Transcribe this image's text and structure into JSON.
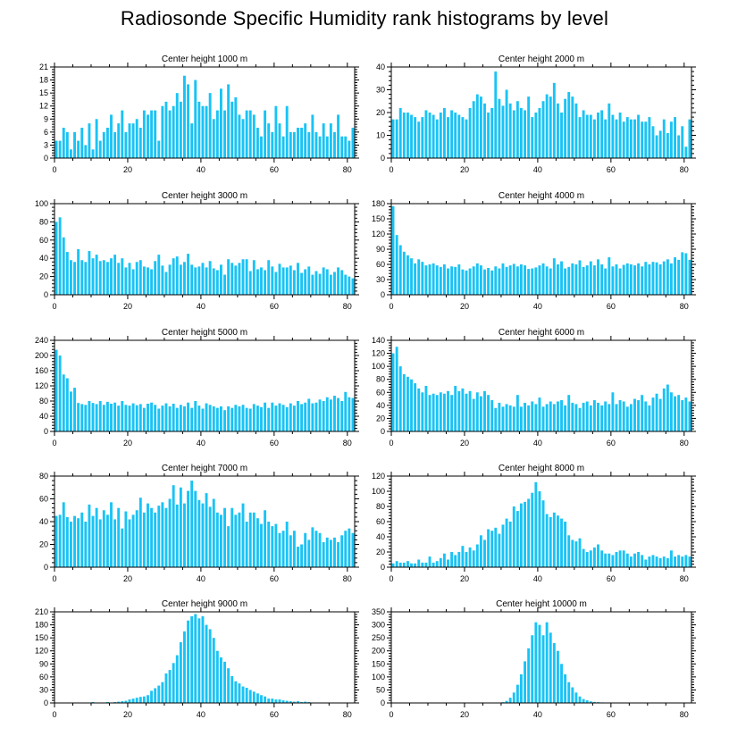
{
  "title": "Radiosonde Specific Humidity rank histograms by level",
  "bar_color": "#19c3f5",
  "chart_data": [
    {
      "type": "bar",
      "title": "Center height 1000 m",
      "xlim": [
        0,
        82
      ],
      "ylim": [
        0,
        21
      ],
      "xticks": [
        0,
        20,
        40,
        60,
        80
      ],
      "yticks": [
        0,
        3,
        6,
        9,
        12,
        15,
        18,
        21
      ],
      "values": [
        4,
        4,
        7,
        6,
        2,
        6,
        4,
        7,
        3,
        8,
        2,
        9,
        4,
        6,
        7,
        10,
        6,
        8,
        11,
        6,
        8,
        8,
        9,
        7,
        11,
        10,
        11,
        11,
        4,
        12,
        13,
        11,
        12,
        15,
        13,
        19,
        17,
        8,
        18,
        13,
        12,
        12,
        15,
        9,
        11,
        16,
        11,
        17,
        13,
        14,
        10,
        9,
        11,
        11,
        10,
        7,
        5,
        11,
        8,
        6,
        12,
        8,
        5,
        12,
        6,
        6,
        7,
        7,
        8,
        6,
        10,
        6,
        5,
        8,
        5,
        8,
        6,
        10,
        5,
        5,
        4,
        7
      ]
    },
    {
      "type": "bar",
      "title": "Center height 2000 m",
      "xlim": [
        0,
        82
      ],
      "ylim": [
        0,
        40
      ],
      "xticks": [
        0,
        20,
        40,
        60,
        80
      ],
      "yticks": [
        0,
        10,
        20,
        30,
        40
      ],
      "values": [
        17,
        17,
        22,
        20,
        20,
        19,
        18,
        16,
        18,
        21,
        20,
        19,
        17,
        20,
        22,
        18,
        21,
        20,
        19,
        18,
        17,
        22,
        25,
        28,
        27,
        24,
        20,
        22,
        38,
        26,
        23,
        30,
        24,
        21,
        25,
        22,
        21,
        27,
        18,
        20,
        22,
        25,
        28,
        27,
        33,
        24,
        20,
        26,
        29,
        27,
        24,
        18,
        21,
        19,
        19,
        17,
        20,
        21,
        17,
        24,
        19,
        17,
        20,
        16,
        18,
        17,
        17,
        19,
        16,
        16,
        18,
        14,
        10,
        12,
        17,
        11,
        16,
        18,
        10,
        14,
        5,
        17
      ]
    },
    {
      "type": "bar",
      "title": "Center height 3000 m",
      "xlim": [
        0,
        82
      ],
      "ylim": [
        0,
        100
      ],
      "xticks": [
        0,
        20,
        40,
        60,
        80
      ],
      "yticks": [
        0,
        20,
        40,
        60,
        80,
        100
      ],
      "values": [
        80,
        85,
        63,
        47,
        38,
        36,
        50,
        38,
        36,
        48,
        40,
        44,
        37,
        38,
        36,
        40,
        44,
        35,
        40,
        30,
        35,
        28,
        36,
        38,
        31,
        30,
        28,
        37,
        44,
        32,
        25,
        33,
        40,
        42,
        33,
        36,
        45,
        33,
        30,
        31,
        35,
        30,
        37,
        29,
        27,
        33,
        22,
        39,
        35,
        32,
        35,
        39,
        39,
        26,
        38,
        28,
        30,
        27,
        38,
        31,
        25,
        34,
        30,
        30,
        32,
        27,
        35,
        24,
        28,
        31,
        22,
        26,
        23,
        30,
        28,
        22,
        25,
        30,
        27,
        22,
        20,
        18
      ]
    },
    {
      "type": "bar",
      "title": "Center height 4000 m",
      "xlim": [
        0,
        82
      ],
      "ylim": [
        0,
        180
      ],
      "xticks": [
        0,
        20,
        40,
        60,
        80
      ],
      "yticks": [
        0,
        30,
        60,
        90,
        120,
        150,
        180
      ],
      "values": [
        175,
        118,
        98,
        85,
        78,
        72,
        62,
        70,
        65,
        58,
        60,
        62,
        58,
        55,
        60,
        52,
        56,
        55,
        60,
        50,
        48,
        52,
        56,
        62,
        58,
        50,
        53,
        48,
        56,
        52,
        62,
        55,
        58,
        61,
        56,
        60,
        58,
        51,
        52,
        54,
        58,
        62,
        56,
        52,
        72,
        60,
        66,
        52,
        55,
        62,
        60,
        68,
        55,
        58,
        66,
        58,
        70,
        60,
        52,
        74,
        56,
        60,
        52,
        59,
        62,
        60,
        58,
        62,
        56,
        65,
        60,
        65,
        64,
        60,
        66,
        70,
        62,
        74,
        69,
        84,
        82,
        69
      ]
    },
    {
      "type": "bar",
      "title": "Center height 5000 m",
      "xlim": [
        0,
        82
      ],
      "ylim": [
        0,
        240
      ],
      "xticks": [
        0,
        20,
        40,
        60,
        80
      ],
      "yticks": [
        0,
        40,
        80,
        120,
        160,
        200,
        240
      ],
      "values": [
        215,
        200,
        150,
        140,
        105,
        115,
        75,
        72,
        70,
        80,
        75,
        72,
        80,
        70,
        78,
        73,
        76,
        68,
        80,
        70,
        68,
        74,
        69,
        72,
        62,
        73,
        76,
        70,
        60,
        68,
        74,
        66,
        73,
        62,
        70,
        66,
        76,
        62,
        80,
        68,
        60,
        74,
        70,
        66,
        62,
        66,
        56,
        66,
        62,
        70,
        66,
        70,
        62,
        60,
        72,
        68,
        64,
        76,
        62,
        76,
        68,
        74,
        70,
        64,
        74,
        68,
        80,
        72,
        76,
        86,
        74,
        76,
        84,
        80,
        90,
        84,
        94,
        88,
        80,
        104,
        90,
        88
      ]
    },
    {
      "type": "bar",
      "title": "Center height 6000 m",
      "xlim": [
        0,
        82
      ],
      "ylim": [
        0,
        140
      ],
      "xticks": [
        0,
        20,
        40,
        60,
        80
      ],
      "yticks": [
        0,
        20,
        40,
        60,
        80,
        100,
        120,
        140
      ],
      "values": [
        120,
        130,
        100,
        88,
        84,
        80,
        74,
        66,
        60,
        70,
        56,
        58,
        56,
        60,
        58,
        62,
        56,
        70,
        62,
        66,
        58,
        62,
        50,
        60,
        54,
        62,
        56,
        48,
        36,
        44,
        38,
        42,
        40,
        38,
        56,
        38,
        44,
        40,
        46,
        42,
        52,
        38,
        42,
        46,
        42,
        46,
        48,
        40,
        56,
        44,
        42,
        36,
        44,
        46,
        40,
        48,
        44,
        40,
        46,
        42,
        60,
        42,
        48,
        46,
        38,
        42,
        50,
        48,
        56,
        46,
        40,
        52,
        58,
        50,
        66,
        72,
        60,
        54,
        56,
        48,
        52,
        46
      ]
    },
    {
      "type": "bar",
      "title": "Center height 7000 m",
      "xlim": [
        0,
        82
      ],
      "ylim": [
        0,
        80
      ],
      "xticks": [
        0,
        20,
        40,
        60,
        80
      ],
      "yticks": [
        0,
        20,
        40,
        60,
        80
      ],
      "values": [
        45,
        46,
        57,
        44,
        40,
        45,
        43,
        48,
        40,
        55,
        45,
        52,
        42,
        50,
        46,
        57,
        42,
        52,
        34,
        49,
        42,
        46,
        50,
        61,
        48,
        56,
        52,
        48,
        54,
        57,
        52,
        60,
        72,
        55,
        70,
        56,
        67,
        76,
        67,
        59,
        56,
        65,
        53,
        60,
        48,
        46,
        52,
        36,
        52,
        46,
        48,
        56,
        40,
        48,
        48,
        43,
        38,
        50,
        40,
        36,
        38,
        30,
        32,
        40,
        28,
        32,
        18,
        20,
        30,
        24,
        35,
        32,
        30,
        22,
        26,
        24,
        26,
        22,
        28,
        32,
        34,
        30
      ]
    },
    {
      "type": "bar",
      "title": "Center height 8000 m",
      "xlim": [
        0,
        82
      ],
      "ylim": [
        0,
        120
      ],
      "xticks": [
        0,
        20,
        40,
        60,
        80
      ],
      "yticks": [
        0,
        20,
        40,
        60,
        80,
        100,
        120
      ],
      "values": [
        5,
        8,
        6,
        6,
        8,
        5,
        5,
        10,
        6,
        6,
        14,
        6,
        8,
        12,
        18,
        10,
        20,
        16,
        20,
        28,
        20,
        26,
        22,
        30,
        42,
        36,
        50,
        48,
        52,
        44,
        56,
        64,
        60,
        80,
        74,
        84,
        86,
        90,
        98,
        112,
        100,
        88,
        70,
        66,
        72,
        68,
        64,
        60,
        42,
        36,
        34,
        38,
        24,
        20,
        22,
        26,
        30,
        22,
        18,
        18,
        16,
        20,
        22,
        22,
        18,
        14,
        18,
        20,
        16,
        10,
        14,
        16,
        14,
        12,
        14,
        12,
        22,
        14,
        16,
        14,
        16,
        14
      ]
    },
    {
      "type": "bar",
      "title": "Center height 9000 m",
      "xlim": [
        0,
        82
      ],
      "ylim": [
        0,
        210
      ],
      "xticks": [
        0,
        20,
        40,
        60,
        80
      ],
      "yticks": [
        0,
        30,
        60,
        90,
        120,
        150,
        180,
        210
      ],
      "values": [
        0,
        0,
        0,
        0,
        0,
        0,
        0,
        0,
        1,
        0,
        2,
        0,
        1,
        0,
        2,
        1,
        2,
        3,
        4,
        5,
        8,
        10,
        12,
        14,
        15,
        18,
        28,
        34,
        40,
        48,
        68,
        76,
        92,
        110,
        140,
        165,
        190,
        200,
        205,
        195,
        200,
        180,
        170,
        150,
        120,
        105,
        95,
        80,
        62,
        50,
        45,
        38,
        35,
        30,
        26,
        22,
        18,
        15,
        10,
        10,
        8,
        8,
        6,
        5,
        4,
        3,
        4,
        2,
        3,
        2,
        1,
        1,
        1,
        0,
        1,
        0,
        0,
        0,
        0,
        0,
        0,
        0
      ]
    },
    {
      "type": "bar",
      "title": "Center height 10000 m",
      "xlim": [
        0,
        82
      ],
      "ylim": [
        0,
        350
      ],
      "xticks": [
        0,
        20,
        40,
        60,
        80
      ],
      "yticks": [
        0,
        50,
        100,
        150,
        200,
        250,
        300,
        350
      ],
      "values": [
        0,
        0,
        0,
        0,
        0,
        0,
        0,
        0,
        0,
        0,
        0,
        0,
        0,
        0,
        0,
        0,
        0,
        0,
        0,
        0,
        0,
        0,
        0,
        0,
        0,
        0,
        0,
        0,
        0,
        1,
        3,
        8,
        20,
        40,
        70,
        110,
        160,
        210,
        260,
        310,
        300,
        260,
        310,
        270,
        230,
        200,
        150,
        110,
        80,
        60,
        40,
        25,
        15,
        10,
        6,
        4,
        3,
        2,
        1,
        1,
        0,
        0,
        0,
        0,
        0,
        0,
        0,
        0,
        0,
        0,
        0,
        0,
        0,
        0,
        0,
        0,
        0,
        0,
        0,
        0,
        0,
        0
      ]
    }
  ]
}
